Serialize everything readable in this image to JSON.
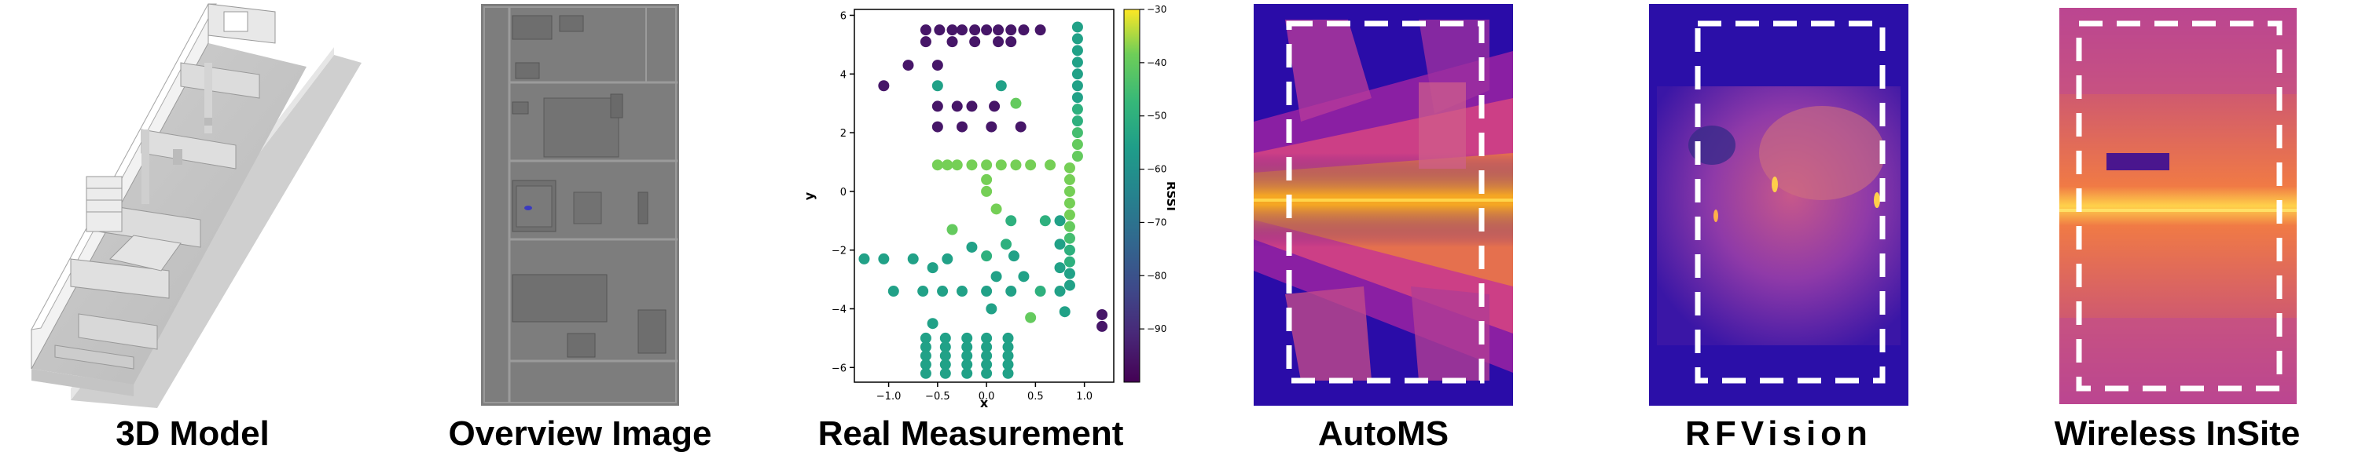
{
  "panels": [
    {
      "id": "model3d",
      "caption": "3D Model"
    },
    {
      "id": "overview",
      "caption": "Overview Image"
    },
    {
      "id": "measurement",
      "caption": "Real Measurement"
    },
    {
      "id": "automs",
      "caption": "AutoMS"
    },
    {
      "id": "rfvision",
      "caption": "RFVision"
    },
    {
      "id": "insite",
      "caption": "Wireless InSite"
    }
  ],
  "chart_data": {
    "type": "scatter",
    "xlabel": "x",
    "ylabel": "y",
    "colorbar_label": "RSSI",
    "xlim": [
      -1.35,
      1.3
    ],
    "ylim": [
      -6.5,
      6.2
    ],
    "x_ticks": [
      -1.0,
      -0.5,
      0.0,
      0.5,
      1.0
    ],
    "x_tick_labels": [
      "−1.0",
      "−0.5",
      "0.0",
      "0.5",
      "1.0"
    ],
    "y_ticks": [
      -6,
      -4,
      -2,
      0,
      2,
      4,
      6
    ],
    "y_tick_labels": [
      "−6",
      "−4",
      "−2",
      "0",
      "2",
      "4",
      "6"
    ],
    "clim": [
      -100,
      -30
    ],
    "colorbar_ticks": [
      -30,
      -40,
      -50,
      -60,
      -70,
      -80,
      -90
    ],
    "colorbar_tick_labels": [
      "−30",
      "−40",
      "−50",
      "−60",
      "−70",
      "−80",
      "−90"
    ],
    "colormap": "viridis",
    "points": [
      [
        -0.62,
        5.5,
        -95
      ],
      [
        -0.62,
        5.1,
        -95
      ],
      [
        -0.48,
        5.5,
        -95
      ],
      [
        -0.35,
        5.5,
        -95
      ],
      [
        -0.35,
        5.1,
        -95
      ],
      [
        -0.25,
        5.5,
        -95
      ],
      [
        -0.12,
        5.5,
        -95
      ],
      [
        -0.12,
        5.1,
        -95
      ],
      [
        0.0,
        5.5,
        -95
      ],
      [
        0.12,
        5.5,
        -95
      ],
      [
        0.12,
        5.1,
        -95
      ],
      [
        0.25,
        5.5,
        -95
      ],
      [
        0.25,
        5.1,
        -95
      ],
      [
        0.38,
        5.5,
        -95
      ],
      [
        0.55,
        5.5,
        -95
      ],
      [
        -1.05,
        3.6,
        -95
      ],
      [
        -0.8,
        4.3,
        -95
      ],
      [
        -0.5,
        4.3,
        -95
      ],
      [
        -0.5,
        2.9,
        -95
      ],
      [
        -0.3,
        2.9,
        -95
      ],
      [
        -0.15,
        2.9,
        -95
      ],
      [
        0.08,
        2.9,
        -95
      ],
      [
        -0.5,
        3.6,
        -55
      ],
      [
        0.15,
        3.6,
        -55
      ],
      [
        0.3,
        3.0,
        -40
      ],
      [
        -0.5,
        2.2,
        -95
      ],
      [
        -0.25,
        2.2,
        -95
      ],
      [
        0.05,
        2.2,
        -95
      ],
      [
        0.35,
        2.2,
        -95
      ],
      [
        -0.5,
        0.9,
        -38
      ],
      [
        -0.4,
        0.9,
        -38
      ],
      [
        -0.3,
        0.9,
        -38
      ],
      [
        -0.15,
        0.9,
        -38
      ],
      [
        0.0,
        0.9,
        -38
      ],
      [
        0.15,
        0.9,
        -38
      ],
      [
        0.3,
        0.9,
        -38
      ],
      [
        0.45,
        0.9,
        -38
      ],
      [
        0.65,
        0.9,
        -38
      ],
      [
        0.0,
        0.4,
        -38
      ],
      [
        0.0,
        0.0,
        -38
      ],
      [
        0.1,
        -0.6,
        -38
      ],
      [
        0.25,
        -1.0,
        -50
      ],
      [
        0.2,
        -1.8,
        -50
      ],
      [
        0.6,
        -1.0,
        -50
      ],
      [
        -0.35,
        -1.3,
        -40
      ],
      [
        -0.15,
        -1.9,
        -55
      ],
      [
        0.0,
        -2.2,
        -50
      ],
      [
        0.1,
        -2.9,
        -55
      ],
      [
        0.28,
        -2.2,
        -55
      ],
      [
        0.38,
        -2.9,
        -55
      ],
      [
        0.55,
        -3.4,
        -50
      ],
      [
        0.45,
        -4.3,
        -40
      ],
      [
        -1.25,
        -2.3,
        -55
      ],
      [
        -1.05,
        -2.3,
        -55
      ],
      [
        -0.75,
        -2.3,
        -55
      ],
      [
        -0.55,
        -2.6,
        -55
      ],
      [
        -0.4,
        -2.3,
        -55
      ],
      [
        -0.95,
        -3.4,
        -55
      ],
      [
        -0.65,
        -3.4,
        -55
      ],
      [
        -0.45,
        -3.4,
        -55
      ],
      [
        -0.25,
        -3.4,
        -55
      ],
      [
        0.0,
        -3.4,
        -55
      ],
      [
        0.25,
        -3.4,
        -55
      ],
      [
        -0.55,
        -4.5,
        -55
      ],
      [
        0.05,
        -4.0,
        -55
      ],
      [
        0.75,
        -1.0,
        -55
      ],
      [
        0.75,
        -1.8,
        -55
      ],
      [
        0.75,
        -2.6,
        -55
      ],
      [
        0.75,
        -3.4,
        -55
      ],
      [
        0.8,
        -4.1,
        -55
      ],
      [
        0.93,
        5.6,
        -55
      ],
      [
        0.93,
        5.2,
        -55
      ],
      [
        0.93,
        4.8,
        -55
      ],
      [
        0.93,
        4.4,
        -55
      ],
      [
        0.93,
        4.0,
        -55
      ],
      [
        0.93,
        3.6,
        -55
      ],
      [
        0.93,
        3.2,
        -55
      ],
      [
        0.93,
        2.8,
        -50
      ],
      [
        0.93,
        2.4,
        -50
      ],
      [
        0.93,
        2.0,
        -45
      ],
      [
        0.93,
        1.6,
        -40
      ],
      [
        0.93,
        1.2,
        -40
      ],
      [
        0.85,
        0.8,
        -38
      ],
      [
        0.85,
        0.4,
        -38
      ],
      [
        0.85,
        0.0,
        -38
      ],
      [
        0.85,
        -0.4,
        -38
      ],
      [
        0.85,
        -0.8,
        -38
      ],
      [
        0.85,
        -1.2,
        -40
      ],
      [
        0.85,
        -1.6,
        -45
      ],
      [
        0.85,
        -2.0,
        -50
      ],
      [
        0.85,
        -2.4,
        -50
      ],
      [
        0.85,
        -2.8,
        -55
      ],
      [
        0.85,
        -3.2,
        -55
      ],
      [
        -0.62,
        -5.0,
        -55
      ],
      [
        -0.62,
        -5.3,
        -55
      ],
      [
        -0.62,
        -5.6,
        -55
      ],
      [
        -0.62,
        -5.9,
        -55
      ],
      [
        -0.62,
        -6.2,
        -55
      ],
      [
        -0.42,
        -5.0,
        -55
      ],
      [
        -0.42,
        -5.3,
        -55
      ],
      [
        -0.42,
        -5.6,
        -55
      ],
      [
        -0.42,
        -5.9,
        -55
      ],
      [
        -0.42,
        -6.2,
        -55
      ],
      [
        -0.2,
        -5.0,
        -55
      ],
      [
        -0.2,
        -5.3,
        -55
      ],
      [
        -0.2,
        -5.6,
        -55
      ],
      [
        -0.2,
        -5.9,
        -55
      ],
      [
        -0.2,
        -6.2,
        -55
      ],
      [
        0.0,
        -5.0,
        -55
      ],
      [
        0.0,
        -5.3,
        -55
      ],
      [
        0.0,
        -5.6,
        -55
      ],
      [
        0.0,
        -5.9,
        -55
      ],
      [
        0.0,
        -6.2,
        -55
      ],
      [
        0.22,
        -5.0,
        -55
      ],
      [
        0.22,
        -5.3,
        -55
      ],
      [
        0.22,
        -5.6,
        -55
      ],
      [
        0.22,
        -5.9,
        -55
      ],
      [
        0.22,
        -6.2,
        -55
      ],
      [
        1.18,
        -4.2,
        -95
      ],
      [
        1.18,
        -4.6,
        -95
      ]
    ]
  }
}
